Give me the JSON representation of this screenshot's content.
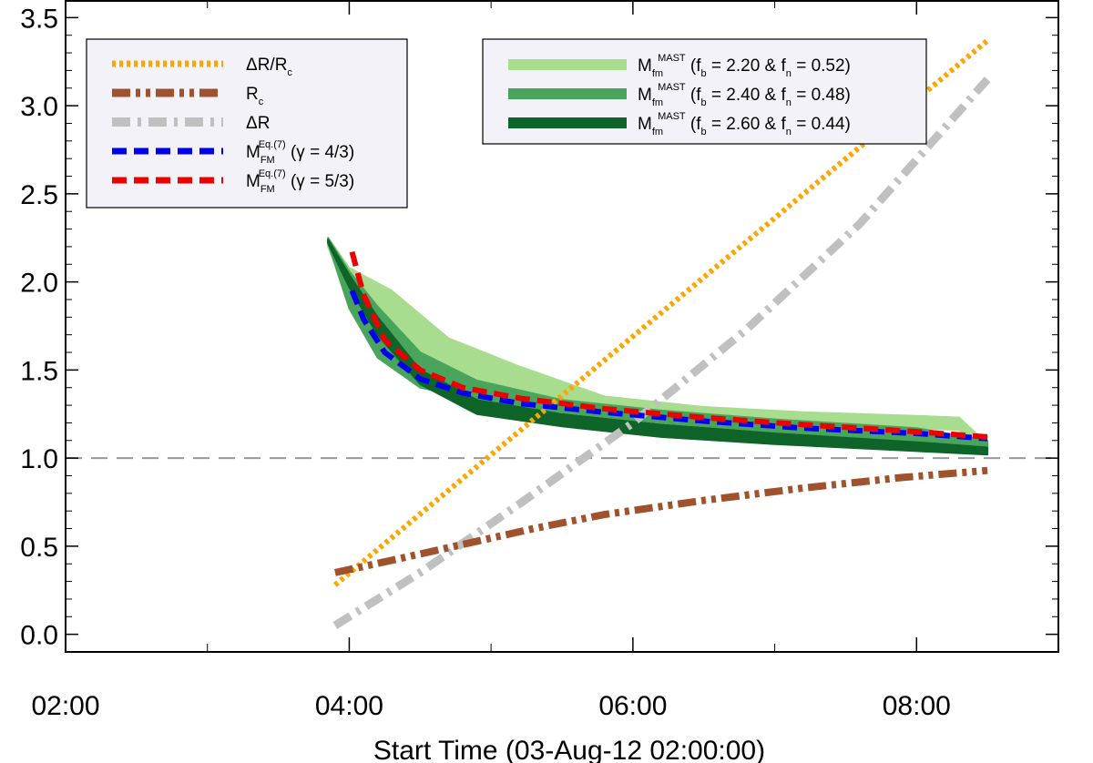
{
  "chart_data": {
    "type": "line",
    "title": "",
    "xlabel": "Start Time (03-Aug-12 02:00:00)",
    "ylabel": "",
    "xlim": [
      2.0,
      9.0
    ],
    "ylim": [
      -0.1,
      3.6
    ],
    "x_ticks": [
      {
        "value": 2,
        "label": "02:00"
      },
      {
        "value": 4,
        "label": "04:00"
      },
      {
        "value": 6,
        "label": "06:00"
      },
      {
        "value": 8,
        "label": "08:00"
      }
    ],
    "x_minor_ticks": [
      3,
      5,
      7
    ],
    "y_ticks": [
      {
        "value": 0.0,
        "label": "0.0"
      },
      {
        "value": 0.5,
        "label": "0.5"
      },
      {
        "value": 1.0,
        "label": "1.0"
      },
      {
        "value": 1.5,
        "label": "1.5"
      },
      {
        "value": 2.0,
        "label": "2.0"
      },
      {
        "value": 2.5,
        "label": "2.5"
      },
      {
        "value": 3.0,
        "label": "3.0"
      },
      {
        "value": 3.5,
        "label": "3.5"
      }
    ],
    "reference_line": {
      "y": 1.0,
      "style": "dashed",
      "color": "#999999"
    },
    "bands": [
      {
        "name": "Mfm MAST (fb = 2.20 & fn = 0.52)",
        "color": "#a8dd8f",
        "x": [
          3.85,
          4.0,
          4.3,
          4.7,
          5.2,
          5.8,
          6.5,
          7.2,
          8.0,
          8.3,
          8.5
        ],
        "upper": [
          2.25,
          2.08,
          1.95,
          1.68,
          1.52,
          1.35,
          1.29,
          1.26,
          1.24,
          1.23,
          1.08
        ],
        "lower": [
          2.2,
          1.9,
          1.65,
          1.43,
          1.33,
          1.27,
          1.22,
          1.19,
          1.17,
          1.16,
          1.05
        ]
      },
      {
        "name": "Mfm MAST (fb = 2.40 & fn = 0.48)",
        "color": "#49a55c",
        "x": [
          3.85,
          4.0,
          4.2,
          4.5,
          4.9,
          5.5,
          6.2,
          7.0,
          8.0,
          8.5
        ],
        "upper": [
          2.25,
          2.06,
          1.86,
          1.6,
          1.44,
          1.33,
          1.27,
          1.22,
          1.17,
          1.1
        ],
        "lower": [
          2.22,
          1.85,
          1.57,
          1.4,
          1.33,
          1.26,
          1.2,
          1.15,
          1.09,
          1.04
        ]
      },
      {
        "name": "Mfm MAST (fb = 2.60 & fn = 0.44)",
        "color": "#0e6429",
        "x": [
          3.85,
          4.0,
          4.2,
          4.5,
          4.9,
          5.5,
          6.2,
          7.0,
          8.0,
          8.5
        ],
        "upper": [
          2.24,
          2.04,
          1.8,
          1.5,
          1.33,
          1.25,
          1.19,
          1.14,
          1.09,
          1.06
        ],
        "lower": [
          2.22,
          1.97,
          1.7,
          1.42,
          1.25,
          1.18,
          1.12,
          1.08,
          1.04,
          1.02
        ]
      }
    ],
    "series": [
      {
        "name": "ΔR/Rc",
        "color": "#ffa500",
        "dash": "4 4",
        "width": 6,
        "x": [
          3.9,
          8.5
        ],
        "y": [
          0.28,
          3.37
        ]
      },
      {
        "name": "Rc",
        "color": "#a0522d",
        "dash": "20 6 5 6 5 6",
        "width": 8,
        "x": [
          3.9,
          4.3,
          4.8,
          5.3,
          5.8,
          6.5,
          7.2,
          7.9,
          8.5
        ],
        "y": [
          0.35,
          0.42,
          0.51,
          0.6,
          0.68,
          0.76,
          0.83,
          0.89,
          0.93
        ]
      },
      {
        "name": "ΔR",
        "color": "#c0c0c0",
        "dash": "20 8 4 8",
        "width": 9,
        "x": [
          3.9,
          4.5,
          5.2,
          6.0,
          6.8,
          7.6,
          8.5
        ],
        "y": [
          0.05,
          0.35,
          0.74,
          1.2,
          1.73,
          2.33,
          3.15
        ]
      },
      {
        "name": "MFM Eq.(7) (γ = 4/3)",
        "color": "#0000ee",
        "dash": "16 8",
        "width": 6,
        "x": [
          4.02,
          4.1,
          4.25,
          4.5,
          4.8,
          5.2,
          5.8,
          6.5,
          7.2,
          8.0,
          8.5
        ],
        "y": [
          1.95,
          1.79,
          1.6,
          1.45,
          1.37,
          1.31,
          1.26,
          1.21,
          1.17,
          1.14,
          1.11
        ]
      },
      {
        "name": "MFM Eq.(7) (γ = 5/3)",
        "color": "#ee0000",
        "dash": "16 8",
        "width": 6,
        "x": [
          4.02,
          4.1,
          4.25,
          4.5,
          4.8,
          5.2,
          5.8,
          6.5,
          7.2,
          8.0,
          8.5
        ],
        "y": [
          2.17,
          1.93,
          1.67,
          1.5,
          1.4,
          1.34,
          1.28,
          1.23,
          1.19,
          1.15,
          1.12
        ]
      }
    ],
    "legend_left": [
      {
        "main": "ΔR/R",
        "sub": "c",
        "sup": "",
        "tail": "",
        "series": 0
      },
      {
        "main": "R",
        "sub": "c",
        "sup": "",
        "tail": "",
        "series": 1
      },
      {
        "main": "ΔR",
        "sub": "",
        "sup": "",
        "tail": "",
        "series": 2
      },
      {
        "main": "M",
        "sub": "FM",
        "sup": "Eq.(7)",
        "tail": "(γ = 4/3)",
        "series": 3
      },
      {
        "main": "M",
        "sub": "FM",
        "sup": "Eq.(7)",
        "tail": "(γ = 5/3)",
        "series": 4
      }
    ],
    "legend_right": [
      {
        "main": "M",
        "sub": "fm",
        "sup": "MAST",
        "tail": "(f",
        "tail_sub": "b",
        "tail_mid": " = 2.20 &  f",
        "tail_sub2": "n",
        "tail_end": " = 0.52)",
        "band": 0
      },
      {
        "main": "M",
        "sub": "fm",
        "sup": "MAST",
        "tail": "(f",
        "tail_sub": "b",
        "tail_mid": " = 2.40 &  f",
        "tail_sub2": "n",
        "tail_end": " = 0.48)",
        "band": 1
      },
      {
        "main": "M",
        "sub": "fm",
        "sup": "MAST",
        "tail": "(f",
        "tail_sub": "b",
        "tail_mid": " = 2.60 &  f",
        "tail_sub2": "n",
        "tail_end": " = 0.44)",
        "band": 2
      }
    ]
  }
}
